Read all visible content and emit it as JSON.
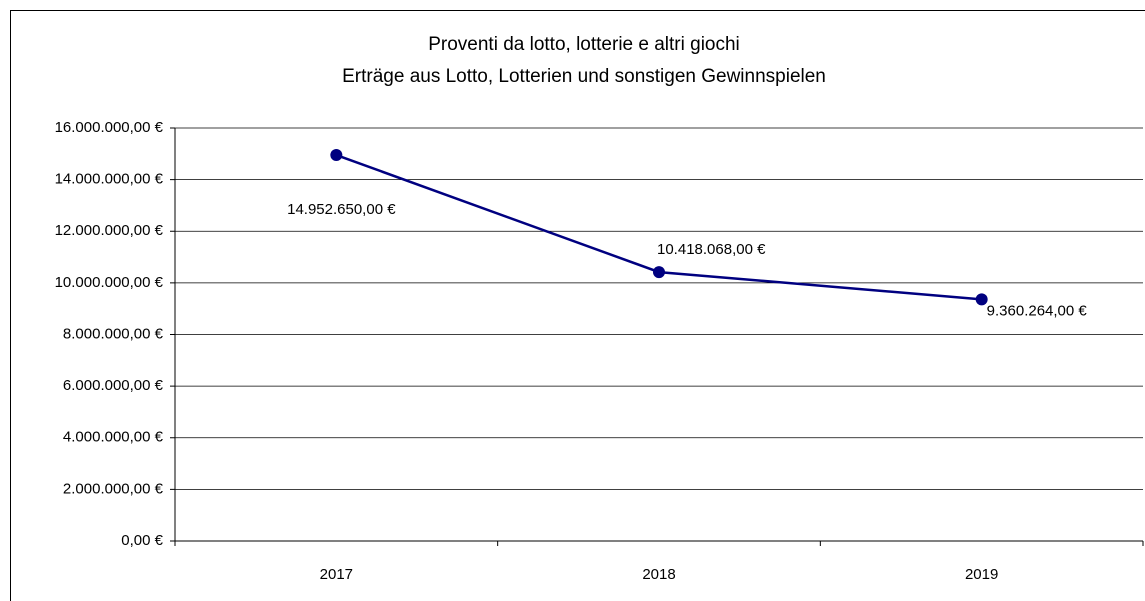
{
  "chart_data": {
    "type": "line",
    "title": [
      "Proventi da lotto, lotterie e altri giochi",
      "Erträge aus Lotto, Lotterien und sonstigen Gewinnspielen"
    ],
    "categories": [
      "2017",
      "2018",
      "2019"
    ],
    "values": [
      14952650,
      10418068,
      9360264
    ],
    "value_labels": [
      "14.952.650,00 €",
      "10.418.068,00 €",
      "9.360.264,00 €"
    ],
    "color": "#000080",
    "ylim": [
      0,
      16000000
    ],
    "yticks": [
      {
        "value": 0,
        "label": "0,00 €"
      },
      {
        "value": 2000000,
        "label": "2.000.000,00 €"
      },
      {
        "value": 4000000,
        "label": "4.000.000,00 €"
      },
      {
        "value": 6000000,
        "label": "6.000.000,00 €"
      },
      {
        "value": 8000000,
        "label": "8.000.000,00 €"
      },
      {
        "value": 10000000,
        "label": "10.000.000,00 €"
      },
      {
        "value": 12000000,
        "label": "12.000.000,00 €"
      },
      {
        "value": 14000000,
        "label": "14.000.000,00 €"
      },
      {
        "value": 16000000,
        "label": "16.000.000,00 €"
      }
    ],
    "grid": true
  }
}
